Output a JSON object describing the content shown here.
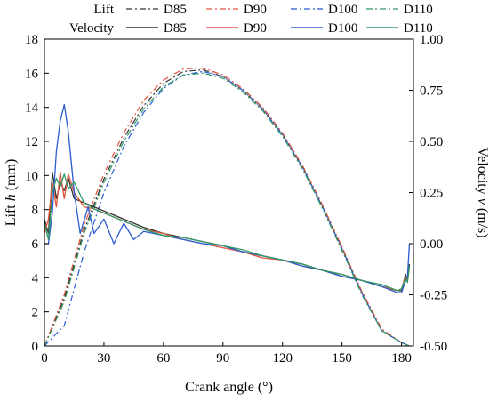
{
  "chart_data": {
    "type": "line",
    "xlabel": "Crank angle (°)",
    "ylabel_left_pre": "Lift ",
    "ylabel_left_var": "h",
    "ylabel_left_post": " (mm)",
    "ylabel_right_pre": "Velocity ",
    "ylabel_right_var": "v",
    "ylabel_right_post": " (m/s)",
    "xlim": [
      0,
      186
    ],
    "ylim_left": [
      0,
      18
    ],
    "ylim_right": [
      -0.5,
      1.0
    ],
    "xticks": [
      0,
      30,
      60,
      90,
      120,
      150,
      180
    ],
    "yticks_left": [
      0,
      2,
      4,
      6,
      8,
      10,
      12,
      14,
      16,
      18
    ],
    "yticks_right": [
      "-0.50",
      "-0.25",
      "0.00",
      "0.25",
      "0.50",
      "0.75",
      "1.00"
    ],
    "legend": {
      "placement": "top",
      "lift_title": "Lift",
      "velocity_title": "Velocity",
      "lift_entries": [
        "D85",
        "D90",
        "D100",
        "D110"
      ],
      "velocity_entries": [
        "D85",
        "D90",
        "D100",
        "D110"
      ]
    },
    "series_colors": {
      "D85": "#333333",
      "D90": "#e0533c",
      "D100": "#2a5bd1",
      "D110": "#2f9a63"
    },
    "lift_series": [
      {
        "name": "D85",
        "axis": "left",
        "style": "dash-dot",
        "x": [
          0,
          10,
          20,
          30,
          40,
          50,
          60,
          70,
          80,
          90,
          100,
          110,
          120,
          130,
          140,
          150,
          160,
          170,
          180,
          184
        ],
        "y": [
          0,
          2.8,
          6.8,
          9.8,
          12.2,
          14.1,
          15.4,
          16.1,
          16.2,
          15.8,
          15.0,
          13.9,
          12.4,
          10.5,
          8.2,
          5.7,
          3.1,
          0.9,
          0.2,
          0.0
        ]
      },
      {
        "name": "D90",
        "axis": "left",
        "style": "dash-dot",
        "x": [
          0,
          10,
          20,
          30,
          40,
          50,
          60,
          70,
          80,
          90,
          100,
          110,
          120,
          130,
          140,
          150,
          160,
          170,
          180,
          184
        ],
        "y": [
          0,
          3.0,
          7.1,
          10.1,
          12.5,
          14.4,
          15.6,
          16.25,
          16.3,
          15.9,
          15.1,
          14.0,
          12.5,
          10.6,
          8.3,
          5.8,
          3.2,
          1.0,
          0.2,
          0.0
        ]
      },
      {
        "name": "D100",
        "axis": "left",
        "style": "dash-dot",
        "x": [
          0,
          10,
          20,
          30,
          40,
          50,
          60,
          70,
          80,
          90,
          100,
          110,
          120,
          130,
          140,
          150,
          160,
          170,
          180,
          184
        ],
        "y": [
          0,
          1.2,
          5.5,
          9.0,
          11.7,
          13.7,
          15.1,
          15.9,
          16.1,
          15.8,
          15.0,
          13.9,
          12.4,
          10.5,
          8.2,
          5.7,
          3.1,
          0.9,
          0.2,
          0.0
        ]
      },
      {
        "name": "D110",
        "axis": "left",
        "style": "dash-dot",
        "x": [
          0,
          10,
          20,
          30,
          40,
          50,
          60,
          70,
          80,
          90,
          100,
          110,
          120,
          130,
          140,
          150,
          160,
          170,
          180,
          184
        ],
        "y": [
          0,
          2.6,
          6.6,
          9.6,
          12.0,
          13.9,
          15.2,
          15.9,
          16.0,
          15.7,
          14.9,
          13.8,
          12.3,
          10.4,
          8.1,
          5.6,
          3.0,
          0.9,
          0.2,
          0.0
        ]
      }
    ],
    "velocity_series": [
      {
        "name": "D85",
        "axis": "right",
        "x": [
          0,
          2,
          4,
          6,
          8,
          10,
          12,
          15,
          20,
          25,
          30,
          40,
          50,
          60,
          70,
          80,
          90,
          100,
          110,
          120,
          130,
          140,
          150,
          160,
          170,
          178,
          180,
          182,
          183,
          184
        ],
        "y": [
          0.12,
          0.05,
          0.35,
          0.22,
          0.3,
          0.26,
          0.32,
          0.22,
          0.2,
          0.18,
          0.16,
          0.12,
          0.08,
          0.05,
          0.03,
          0.01,
          -0.01,
          -0.04,
          -0.06,
          -0.08,
          -0.1,
          -0.13,
          -0.16,
          -0.18,
          -0.21,
          -0.23,
          -0.23,
          -0.15,
          -0.18,
          -0.1
        ]
      },
      {
        "name": "D90",
        "axis": "right",
        "x": [
          0,
          2,
          4,
          6,
          8,
          10,
          12,
          15,
          20,
          25,
          30,
          40,
          50,
          60,
          70,
          80,
          90,
          100,
          110,
          120,
          130,
          140,
          150,
          160,
          170,
          178,
          180,
          182,
          183,
          184
        ],
        "y": [
          0.05,
          0.12,
          0.3,
          0.18,
          0.35,
          0.22,
          0.34,
          0.25,
          0.18,
          0.17,
          0.15,
          0.11,
          0.07,
          0.05,
          0.02,
          0.0,
          -0.02,
          -0.04,
          -0.07,
          -0.08,
          -0.11,
          -0.13,
          -0.15,
          -0.18,
          -0.21,
          -0.23,
          -0.22,
          -0.16,
          -0.18,
          -0.12
        ]
      },
      {
        "name": "D100",
        "axis": "right",
        "x": [
          0,
          2,
          4,
          6,
          8,
          10,
          12,
          15,
          18,
          22,
          25,
          30,
          35,
          40,
          45,
          50,
          60,
          70,
          80,
          90,
          100,
          110,
          120,
          130,
          140,
          150,
          160,
          170,
          178,
          180,
          182,
          183,
          184
        ],
        "y": [
          0.0,
          0.0,
          0.15,
          0.45,
          0.6,
          0.68,
          0.55,
          0.25,
          0.05,
          0.18,
          0.05,
          0.12,
          0.0,
          0.1,
          0.02,
          0.06,
          0.04,
          0.02,
          0.0,
          -0.01,
          -0.04,
          -0.06,
          -0.08,
          -0.11,
          -0.13,
          -0.16,
          -0.18,
          -0.21,
          -0.24,
          -0.24,
          -0.18,
          -0.16,
          0.0
        ]
      },
      {
        "name": "D110",
        "axis": "right",
        "x": [
          0,
          2,
          4,
          6,
          8,
          10,
          12,
          15,
          20,
          25,
          30,
          40,
          50,
          60,
          70,
          80,
          90,
          100,
          110,
          120,
          130,
          140,
          150,
          160,
          170,
          178,
          180,
          182,
          183,
          184
        ],
        "y": [
          0.1,
          0.02,
          0.25,
          0.32,
          0.28,
          0.34,
          0.27,
          0.3,
          0.2,
          0.17,
          0.15,
          0.11,
          0.07,
          0.04,
          0.03,
          0.01,
          -0.01,
          -0.03,
          -0.06,
          -0.08,
          -0.1,
          -0.13,
          -0.15,
          -0.18,
          -0.2,
          -0.23,
          -0.22,
          -0.17,
          -0.19,
          -0.11
        ]
      }
    ]
  }
}
